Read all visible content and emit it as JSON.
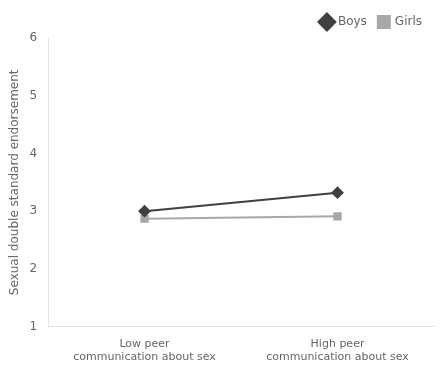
{
  "chart_data": {
    "type": "line",
    "categories": [
      "Low peer\ncommunication about sex",
      "High peer\ncommunication about sex"
    ],
    "series": [
      {
        "name": "Boys",
        "color": "#404040",
        "marker": "diamond",
        "line_style": "solid",
        "values": [
          3.0,
          3.32
        ]
      },
      {
        "name": "Girls",
        "color": "#a8a8a8",
        "marker": "square",
        "line_style": "solid",
        "values": [
          2.87,
          2.91
        ]
      }
    ],
    "ylabel": "Sexual double standard endorsement",
    "ylim": [
      1,
      6
    ],
    "yticks": [
      1,
      2,
      3,
      4,
      5,
      6
    ],
    "grid": false,
    "legend": "upper right"
  }
}
